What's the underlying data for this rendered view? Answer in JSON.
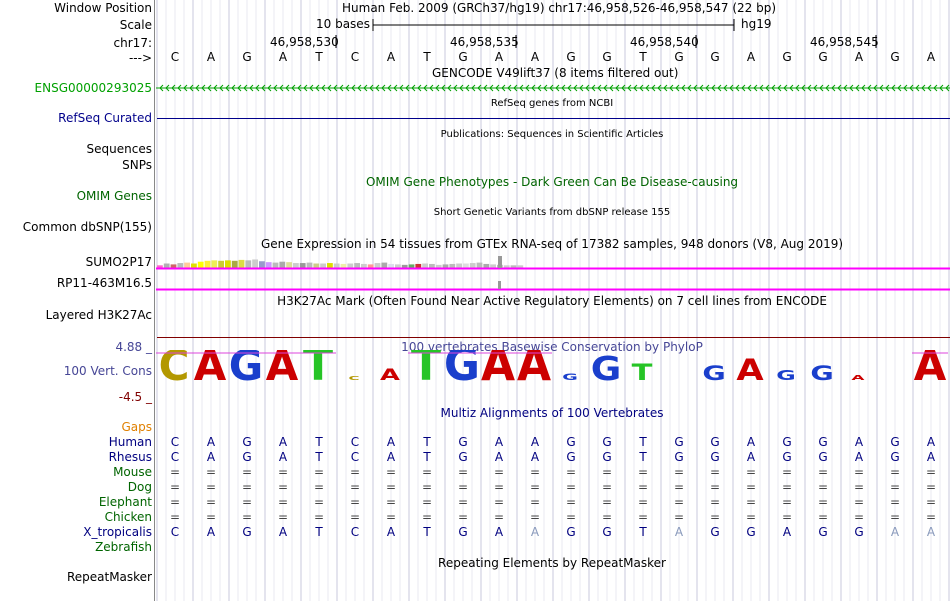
{
  "header": {
    "window_position_label": "Window Position",
    "scale_label": "Scale",
    "chr_label": "chr17:",
    "arrow_label": "--->",
    "assembly_text": "Human Feb. 2009 (GRCh37/hg19)   chr17:46,958,526-46,958,547 (22 bp)",
    "scale_text": "10 bases",
    "hg_text": "hg19",
    "positions": [
      "46,958,530",
      "46,958,535",
      "46,958,540",
      "46,958,545"
    ]
  },
  "sequence": [
    "C",
    "A",
    "G",
    "A",
    "T",
    "C",
    "A",
    "T",
    "G",
    "A",
    "A",
    "G",
    "G",
    "T",
    "G",
    "G",
    "A",
    "G",
    "G",
    "A",
    "G",
    "A"
  ],
  "tracks": {
    "gencode_title": "GENCODE V49lift37 (8 items filtered out)",
    "gencode_label": "ENSG00000293025",
    "refseq_title": "RefSeq genes from NCBI",
    "refseq_label": "RefSeq Curated",
    "publications_title": "Publications: Sequences in Scientific Articles",
    "sequences_label": "Sequences",
    "snps_label": "SNPs",
    "omim_label": "OMIM Genes",
    "omim_title": "OMIM Gene Phenotypes - Dark Green Can Be Disease-causing",
    "dbsnp_title": "Short Genetic Variants from dbSNP release 155",
    "dbsnp_label": "Common dbSNP(155)",
    "gtex_title": "Gene Expression in 54 tissues from GTEx RNA-seq of 17382 samples, 948 donors (V8, Aug 2019)",
    "gtex_label1": "SUMO2P17",
    "gtex_label2": "RP11-463M16.5",
    "h3k27_title": "H3K27Ac Mark (Often Found Near Active Regulatory Elements) on 7 cell lines from ENCODE",
    "h3k27_label": "Layered H3K27Ac",
    "phylop_title": "100 vertebrates Basewise Conservation by PhyloP",
    "phylop_label": "100 Vert. Cons",
    "phylop_max": "4.88 _",
    "phylop_min": "-4.5 _",
    "multiz_title": "Multiz Alignments of 100 Vertebrates",
    "repeat_title": "Repeating Elements by RepeatMasker",
    "repeat_label": "RepeatMasker"
  },
  "conservation_logo": [
    {
      "base": "C",
      "h": 0.62
    },
    {
      "base": "A",
      "h": 0.62
    },
    {
      "base": "G",
      "h": 0.62
    },
    {
      "base": "A",
      "h": 0.62
    },
    {
      "base": "T",
      "h": 0.65
    },
    {
      "base": "C",
      "h": 0.22
    },
    {
      "base": "A",
      "h": 0.38
    },
    {
      "base": "T",
      "h": 0.65
    },
    {
      "base": "G",
      "h": 0.65
    },
    {
      "base": "A",
      "h": 0.65
    },
    {
      "base": "A",
      "h": 0.65
    },
    {
      "base": "G",
      "h": 0.28
    },
    {
      "base": "G",
      "h": 0.55
    },
    {
      "base": "T",
      "h": 0.45
    },
    {
      "base": "",
      "h": 0
    },
    {
      "base": "G",
      "h": 0.42
    },
    {
      "base": "A",
      "h": 0.52
    },
    {
      "base": "G",
      "h": 0.35
    },
    {
      "base": "G",
      "h": 0.42
    },
    {
      "base": "A",
      "h": 0.25
    },
    {
      "base": "",
      "h": 0
    },
    {
      "base": "A",
      "h": 0.62
    }
  ],
  "alignment": {
    "gaps_label": "Gaps",
    "species": [
      {
        "name": "Human",
        "color": "#000080",
        "row": [
          "C",
          "A",
          "G",
          "A",
          "T",
          "C",
          "A",
          "T",
          "G",
          "A",
          "A",
          "G",
          "G",
          "T",
          "G",
          "G",
          "A",
          "G",
          "G",
          "A",
          "G",
          "A"
        ]
      },
      {
        "name": "Rhesus",
        "color": "#000080",
        "row": [
          "C",
          "A",
          "G",
          "A",
          "T",
          "C",
          "A",
          "T",
          "G",
          "A",
          "A",
          "G",
          "G",
          "T",
          "G",
          "G",
          "A",
          "G",
          "G",
          "A",
          "G",
          "A"
        ]
      },
      {
        "name": "Mouse",
        "color": "#006400",
        "row": [
          "=",
          "=",
          "=",
          "=",
          "=",
          "=",
          "=",
          "=",
          "=",
          "=",
          "=",
          "=",
          "=",
          "=",
          "=",
          "=",
          "=",
          "=",
          "=",
          "=",
          "=",
          "="
        ]
      },
      {
        "name": "Dog",
        "color": "#006400",
        "row": [
          "=",
          "=",
          "=",
          "=",
          "=",
          "=",
          "=",
          "=",
          "=",
          "=",
          "=",
          "=",
          "=",
          "=",
          "=",
          "=",
          "=",
          "=",
          "=",
          "=",
          "=",
          "="
        ]
      },
      {
        "name": "Elephant",
        "color": "#006400",
        "row": [
          "=",
          "=",
          "=",
          "=",
          "=",
          "=",
          "=",
          "=",
          "=",
          "=",
          "=",
          "=",
          "=",
          "=",
          "=",
          "=",
          "=",
          "=",
          "=",
          "=",
          "=",
          "="
        ]
      },
      {
        "name": "Chicken",
        "color": "#006400",
        "row": [
          "=",
          "=",
          "=",
          "=",
          "=",
          "=",
          "=",
          "=",
          "=",
          "=",
          "=",
          "=",
          "=",
          "=",
          "=",
          "=",
          "=",
          "=",
          "=",
          "=",
          "=",
          "="
        ]
      },
      {
        "name": "X_tropicalis",
        "color": "#000080",
        "row": [
          "C",
          "A",
          "G",
          "A",
          "T",
          "C",
          "A",
          "T",
          "G",
          "A",
          "A",
          "G",
          "G",
          "T",
          "A",
          "G",
          "G",
          "A",
          "G",
          "G",
          "A",
          "A"
        ]
      },
      {
        "name": "Zebrafish",
        "color": "#006400",
        "row": []
      }
    ],
    "x_tropicalis_mismatch": [
      10,
      14,
      20,
      21
    ]
  },
  "gtex_bar_values": [
    0.3,
    0.5,
    0.4,
    0.55,
    0.6,
    0.5,
    0.7,
    0.8,
    0.85,
    0.8,
    0.85,
    0.8,
    0.9,
    0.85,
    0.95,
    0.75,
    0.65,
    0.6,
    0.7,
    0.65,
    0.55,
    0.55,
    0.6,
    0.5,
    0.5,
    0.55,
    0.5,
    0.45,
    0.5,
    0.55,
    0.45,
    0.4,
    0.55,
    0.6,
    0.45,
    0.4,
    0.35,
    0.4,
    0.45,
    0.5,
    0.45,
    0.35,
    0.4,
    0.45,
    0.5,
    0.5,
    0.55,
    0.6,
    0.45,
    0.4,
    0.35,
    0.3,
    0.3,
    0.3
  ],
  "colors": {
    "gencode": "#00a000",
    "refseq": "#00008b",
    "omim": "#006400",
    "phylop": "#464696",
    "h3k27_line": "#800000",
    "gtex_line": "#ff00ff",
    "gaps_label": "#e08000",
    "guide": "#ddddee"
  }
}
